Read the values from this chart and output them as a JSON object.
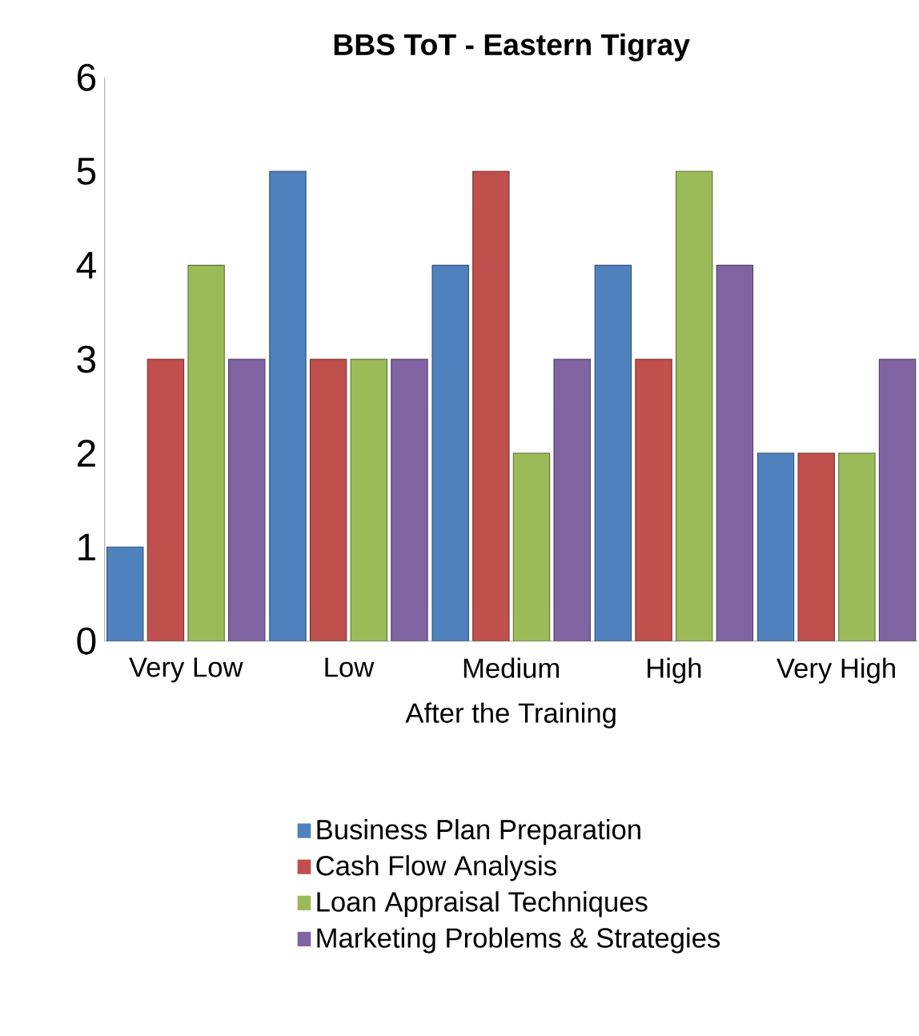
{
  "chart_data": {
    "type": "bar",
    "title": "BBS ToT - Eastern Tigray",
    "xlabel": "After the Training",
    "categories": [
      "Very Low",
      "Low",
      "Medium",
      "High",
      "Very High"
    ],
    "series": [
      {
        "name": "Business Plan Preparation",
        "color": "#4f81bd",
        "values": [
          1,
          5,
          4,
          4,
          2
        ]
      },
      {
        "name": "Cash Flow Analysis",
        "color": "#c0504d",
        "values": [
          3,
          3,
          5,
          3,
          2
        ]
      },
      {
        "name": "Loan Appraisal Techniques",
        "color": "#9bbb59",
        "values": [
          4,
          3,
          2,
          5,
          2
        ]
      },
      {
        "name": "Marketing Problems & Strategies",
        "color": "#8064a2",
        "values": [
          3,
          3,
          3,
          4,
          3
        ]
      }
    ],
    "ylim": [
      0,
      6
    ],
    "yticks": [
      0,
      1,
      2,
      3,
      4,
      5,
      6
    ],
    "grid": false,
    "legend": "bottom"
  }
}
